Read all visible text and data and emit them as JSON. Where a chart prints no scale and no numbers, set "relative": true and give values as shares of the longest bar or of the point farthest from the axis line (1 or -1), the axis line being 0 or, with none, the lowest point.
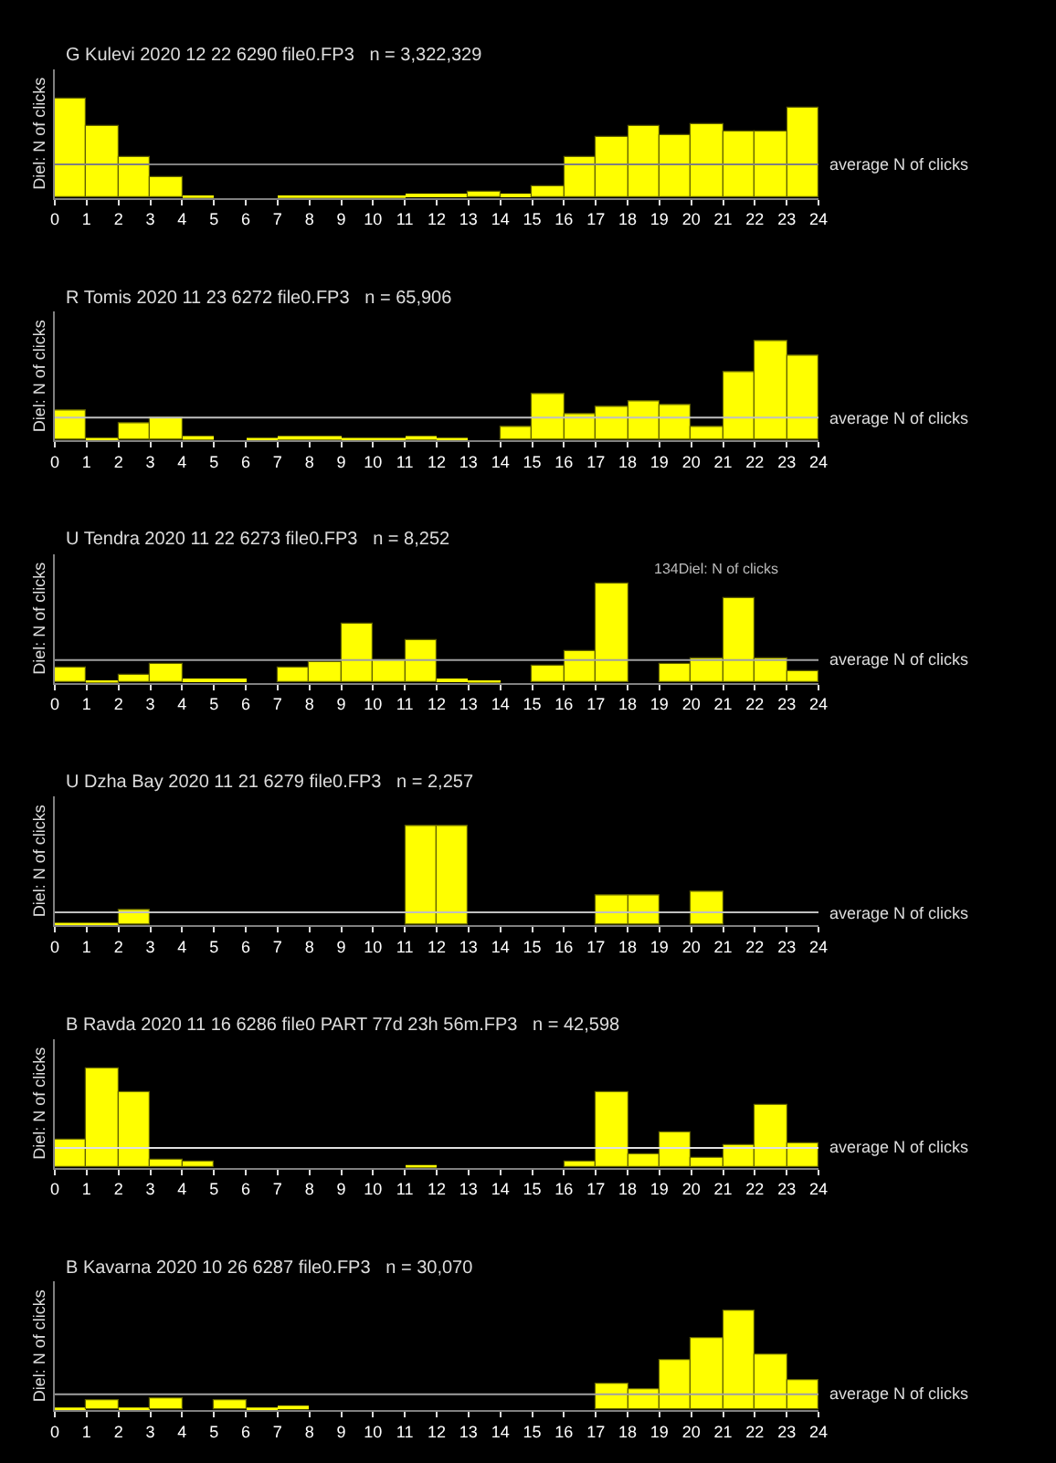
{
  "chart_data": [
    {
      "type": "bar",
      "title": "G Kulevi 2020 12 22 6290 file0.FP3   n = 3,322,329",
      "ylabel": "Diel: N of clicks",
      "relative": true,
      "color": "#ffff00",
      "xlim": [
        0,
        24
      ],
      "xticks": [
        0,
        1,
        2,
        3,
        4,
        5,
        6,
        7,
        8,
        9,
        10,
        11,
        12,
        13,
        14,
        15,
        16,
        17,
        18,
        19,
        20,
        21,
        22,
        23,
        24
      ],
      "x": [
        0.5,
        1.5,
        2.5,
        3.5,
        4.5,
        5.5,
        6.5,
        7.5,
        8.5,
        9.5,
        10.5,
        11.5,
        12.5,
        13.5,
        14.5,
        15.5,
        16.5,
        17.5,
        18.5,
        19.5,
        20.5,
        21.5,
        22.5,
        23.5
      ],
      "values": [
        1.0,
        0.72,
        0.41,
        0.21,
        0.03,
        0,
        0,
        0.02,
        0.02,
        0.02,
        0.02,
        0.04,
        0.04,
        0.06,
        0.04,
        0.12,
        0.41,
        0.61,
        0.72,
        0.63,
        0.74,
        0.67,
        0.67,
        0.92
      ],
      "ref_lines": [
        {
          "axis": "y",
          "value": 0.34,
          "label": "average N of clicks",
          "color": "#808080"
        }
      ]
    },
    {
      "type": "bar",
      "title": "R Tomis 2020 11 23 6272 file0.FP3   n = 65,906",
      "ylabel": "Diel: N of clicks",
      "relative": true,
      "color": "#ffff00",
      "xlim": [
        0,
        24
      ],
      "xticks": [
        0,
        1,
        2,
        3,
        4,
        5,
        6,
        7,
        8,
        9,
        10,
        11,
        12,
        13,
        14,
        15,
        16,
        17,
        18,
        19,
        20,
        21,
        22,
        23,
        24
      ],
      "x": [
        0.5,
        1.5,
        2.5,
        3.5,
        4.5,
        5.5,
        6.5,
        7.5,
        8.5,
        9.5,
        10.5,
        11.5,
        12.5,
        13.5,
        14.5,
        15.5,
        16.5,
        17.5,
        18.5,
        19.5,
        20.5,
        21.5,
        22.5,
        23.5
      ],
      "values": [
        0.3,
        0.01,
        0.18,
        0.23,
        0.05,
        0,
        0.03,
        0.04,
        0.04,
        0.03,
        0.01,
        0.04,
        0.01,
        0,
        0.14,
        0.46,
        0.26,
        0.34,
        0.4,
        0.35,
        0.14,
        0.69,
        1.0,
        0.86
      ],
      "ref_lines": [
        {
          "axis": "y",
          "value": 0.23,
          "label": "average N of clicks",
          "color": "#c0c0c0"
        }
      ]
    },
    {
      "type": "bar",
      "title": "U Tendra 2020 11 22 6273 file0.FP3   n = 8,252",
      "ylabel": "Diel: N of clicks",
      "relative": true,
      "color": "#ffff00",
      "xlim": [
        0,
        24
      ],
      "xticks": [
        0,
        1,
        2,
        3,
        4,
        5,
        6,
        7,
        8,
        9,
        10,
        11,
        12,
        13,
        14,
        15,
        16,
        17,
        18,
        19,
        20,
        21,
        22,
        23,
        24
      ],
      "x": [
        0.5,
        1.5,
        2.5,
        3.5,
        4.5,
        5.5,
        6.5,
        7.5,
        8.5,
        9.5,
        10.5,
        11.5,
        12.5,
        13.5,
        14.5,
        15.5,
        16.5,
        17.5,
        18.5,
        19.5,
        20.5,
        21.5,
        22.5,
        23.5
      ],
      "values": [
        0.15,
        0.03,
        0.08,
        0.19,
        0.04,
        0.04,
        0,
        0.15,
        0.21,
        0.59,
        0.22,
        0.44,
        0.05,
        0.03,
        0,
        0.17,
        0.32,
        1.0,
        0,
        0.19,
        0.24,
        0.85,
        0.24,
        0.12
      ],
      "ref_lines": [
        {
          "axis": "y",
          "value": 0.23,
          "label": "average N of clicks",
          "color": "#a0a0a0"
        }
      ],
      "annotations": [
        "134Diel: N of clicks"
      ]
    },
    {
      "type": "bar",
      "title": "U Dzha Bay 2020 11 21 6279 file0.FP3   n = 2,257",
      "ylabel": "Diel: N of clicks",
      "relative": true,
      "color": "#ffff00",
      "xlim": [
        0,
        24
      ],
      "xticks": [
        0,
        1,
        2,
        3,
        4,
        5,
        6,
        7,
        8,
        9,
        10,
        11,
        12,
        13,
        14,
        15,
        16,
        17,
        18,
        19,
        20,
        21,
        22,
        23,
        24
      ],
      "x": [
        0.5,
        1.5,
        2.5,
        3.5,
        4.5,
        5.5,
        6.5,
        7.5,
        8.5,
        9.5,
        10.5,
        11.5,
        12.5,
        13.5,
        14.5,
        15.5,
        16.5,
        17.5,
        18.5,
        19.5,
        20.5,
        21.5,
        22.5,
        23.5
      ],
      "values": [
        0.02,
        0.02,
        0.16,
        0,
        0,
        0,
        0,
        0,
        0,
        0,
        0,
        1.0,
        1.0,
        0,
        0,
        0,
        0,
        0.31,
        0.3,
        0,
        0.34,
        0,
        0,
        0
      ],
      "ref_lines": [
        {
          "axis": "y",
          "value": 0.13,
          "label": "average N of clicks",
          "color": "#c0c0c0"
        }
      ]
    },
    {
      "type": "bar",
      "title": "B Ravda 2020 11 16 6286 file0 PART 77d 23h 56m.FP3   n = 42,598",
      "ylabel": "Diel: N of clicks",
      "relative": true,
      "color": "#ffff00",
      "xlim": [
        0,
        24
      ],
      "xticks": [
        0,
        1,
        2,
        3,
        4,
        5,
        6,
        7,
        8,
        9,
        10,
        11,
        12,
        13,
        14,
        15,
        16,
        17,
        18,
        19,
        20,
        21,
        22,
        23,
        24
      ],
      "x": [
        0.5,
        1.5,
        2.5,
        3.5,
        4.5,
        5.5,
        6.5,
        7.5,
        8.5,
        9.5,
        10.5,
        11.5,
        12.5,
        13.5,
        14.5,
        15.5,
        16.5,
        17.5,
        18.5,
        19.5,
        20.5,
        21.5,
        22.5,
        23.5
      ],
      "values": [
        0.29,
        1.0,
        0.76,
        0.08,
        0.06,
        0,
        0,
        0,
        0,
        0,
        0,
        0.02,
        0,
        0,
        0,
        0,
        0.06,
        0.77,
        0.14,
        0.35,
        0.09,
        0.22,
        0.63,
        0.24
      ],
      "ref_lines": [
        {
          "axis": "y",
          "value": 0.2,
          "label": "average N of clicks",
          "color": "#e0e0e0"
        }
      ]
    },
    {
      "type": "bar",
      "title": "B Kavarna 2020 10 26 6287 file0.FP3   n = 30,070",
      "ylabel": "Diel: N of clicks",
      "relative": true,
      "color": "#ffff00",
      "xlim": [
        0,
        24
      ],
      "xticks": [
        0,
        1,
        2,
        3,
        4,
        5,
        6,
        7,
        8,
        9,
        10,
        11,
        12,
        13,
        14,
        15,
        16,
        17,
        18,
        19,
        20,
        21,
        22,
        23,
        24
      ],
      "x": [
        0.5,
        1.5,
        2.5,
        3.5,
        4.5,
        5.5,
        6.5,
        7.5,
        8.5,
        9.5,
        10.5,
        11.5,
        12.5,
        13.5,
        14.5,
        15.5,
        16.5,
        17.5,
        18.5,
        19.5,
        20.5,
        21.5,
        22.5,
        23.5
      ],
      "values": [
        0.01,
        0.1,
        0.02,
        0.11,
        0,
        0.09,
        0.03,
        0.04,
        0,
        0,
        0,
        0,
        0,
        0,
        0,
        0,
        0,
        0.26,
        0.21,
        0.51,
        0.73,
        1.0,
        0.56,
        0.3
      ],
      "ref_lines": [
        {
          "axis": "y",
          "value": 0.16,
          "label": "average N of clicks",
          "color": "#a0a0a0"
        }
      ]
    }
  ]
}
